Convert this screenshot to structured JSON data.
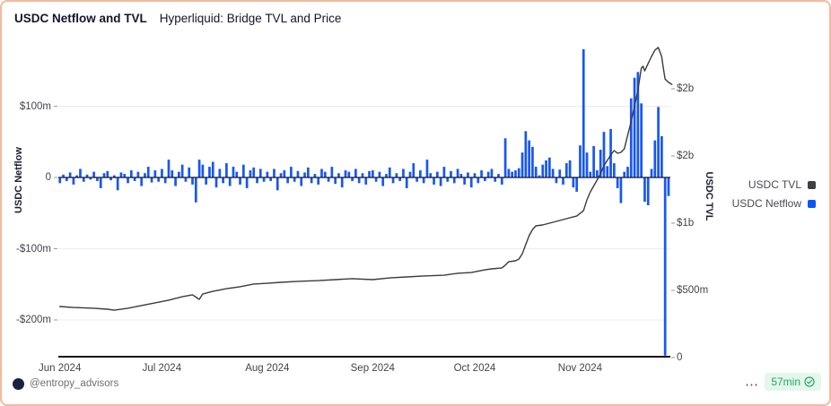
{
  "header": {
    "title": "USDC Netflow and TVL",
    "subtitle": "Hyperliquid: Bridge TVL and Price"
  },
  "legend": [
    {
      "label": "USDC TVL",
      "color": "#3f3f46"
    },
    {
      "label": "USDC Netflow",
      "color": "#0b57f5"
    }
  ],
  "footer": {
    "handle": "@entropy_advisors",
    "menu": "⋯",
    "badge": "57min"
  },
  "colors": {
    "bar_blue": "#1757f2",
    "line_dark": "#3b3b3b",
    "grid": "#ececec",
    "axis": "#15151c",
    "badge_green": "#27a567",
    "border_salmon": "#f4b9a2"
  },
  "chart_data": {
    "type": "bar",
    "subtype": "combo-bar-line-dual-axis",
    "title": "USDC Netflow and TVL",
    "subtitle": "Hyperliquid: Bridge TVL and Price",
    "x_axis": {
      "labels": [
        "Jun 2024",
        "Jul 2024",
        "Aug 2024",
        "Sep 2024",
        "Oct 2024",
        "Nov 2024"
      ],
      "label_day_offsets": [
        0,
        30,
        61,
        92,
        122,
        153
      ],
      "total_days": 180
    },
    "left_axis": {
      "title": "USDC Netflow",
      "unit": "$m",
      "ticks": [
        {
          "v": 100,
          "label": "$100m"
        },
        {
          "v": 0,
          "label": "0"
        },
        {
          "v": -100,
          "label": "-$100m"
        },
        {
          "v": -200,
          "label": "-$200m"
        }
      ],
      "range_m": [
        -253,
        190
      ]
    },
    "right_axis": {
      "title": "USDC TVL",
      "unit": "$m",
      "ticks": [
        {
          "v": 2000,
          "label": "$2b"
        },
        {
          "v": 1500,
          "label": "$2b"
        },
        {
          "v": 1000,
          "label": "$1b"
        },
        {
          "v": 500,
          "label": "$500m"
        },
        {
          "v": 0,
          "label": "0"
        }
      ],
      "range_m": [
        0,
        2350
      ]
    },
    "grid": "horizontal-at-left-ticks",
    "legend_position": "right",
    "series": [
      {
        "name": "USDC Netflow",
        "type": "bar",
        "axis": "left",
        "color": "#1757f2",
        "values": [
          -8,
          4,
          -5,
          7,
          -10,
          3,
          12,
          -6,
          4,
          -3,
          8,
          -5,
          -15,
          6,
          9,
          -4,
          3,
          -18,
          7,
          5,
          -8,
          10,
          -5,
          8,
          -12,
          6,
          15,
          -7,
          10,
          -6,
          12,
          -8,
          25,
          10,
          -12,
          8,
          18,
          -6,
          14,
          -10,
          -35,
          25,
          18,
          -10,
          15,
          22,
          -14,
          12,
          -8,
          20,
          -12,
          15,
          8,
          -10,
          18,
          -15,
          10,
          14,
          -8,
          12,
          -6,
          8,
          -5,
          12,
          -18,
          6,
          10,
          -8,
          15,
          -6,
          9,
          -12,
          7,
          14,
          -8,
          5,
          -10,
          12,
          8,
          -6,
          15,
          -9,
          6,
          -14,
          10,
          8,
          -5,
          12,
          -8,
          6,
          -10,
          9,
          10,
          -6,
          8,
          -12,
          5,
          14,
          -8,
          6,
          -5,
          12,
          -15,
          8,
          20,
          -6,
          10,
          -8,
          25,
          6,
          -10,
          8,
          -12,
          15,
          -6,
          9,
          -8,
          12,
          5,
          -10,
          7,
          -14,
          6,
          -8,
          10,
          -5,
          8,
          12,
          -6,
          5,
          -10,
          55,
          12,
          8,
          10,
          13,
          35,
          65,
          52,
          43,
          15,
          3,
          18,
          24,
          28,
          12,
          -8,
          11,
          -10,
          20,
          24,
          -14,
          -20,
          45,
          180,
          35,
          8,
          44,
          10,
          39,
          64,
          16,
          68,
          20,
          -15,
          -36,
          8,
          15,
          111,
          140,
          148,
          104,
          -34,
          -39,
          12,
          52,
          99,
          58,
          -250,
          -26
        ]
      },
      {
        "name": "USDC TVL",
        "type": "line",
        "axis": "right",
        "color": "#3b3b3b",
        "points": [
          [
            0,
            380
          ],
          [
            4,
            373
          ],
          [
            10,
            367
          ],
          [
            14,
            360
          ],
          [
            16,
            353
          ],
          [
            20,
            367
          ],
          [
            24,
            387
          ],
          [
            28,
            407
          ],
          [
            32,
            427
          ],
          [
            36,
            453
          ],
          [
            39,
            467
          ],
          [
            40,
            450
          ],
          [
            41,
            433
          ],
          [
            42,
            473
          ],
          [
            45,
            493
          ],
          [
            49,
            513
          ],
          [
            53,
            527
          ],
          [
            57,
            547
          ],
          [
            61,
            553
          ],
          [
            65,
            560
          ],
          [
            70,
            567
          ],
          [
            76,
            573
          ],
          [
            81,
            580
          ],
          [
            86,
            587
          ],
          [
            92,
            580
          ],
          [
            97,
            593
          ],
          [
            102,
            600
          ],
          [
            107,
            607
          ],
          [
            113,
            613
          ],
          [
            117,
            627
          ],
          [
            121,
            633
          ],
          [
            125,
            653
          ],
          [
            127,
            660
          ],
          [
            130,
            667
          ],
          [
            131,
            687
          ],
          [
            132,
            713
          ],
          [
            134,
            720
          ],
          [
            135,
            733
          ],
          [
            136,
            773
          ],
          [
            137,
            840
          ],
          [
            138,
            907
          ],
          [
            139,
            953
          ],
          [
            140,
            980
          ],
          [
            142,
            987
          ],
          [
            144,
            1000
          ],
          [
            147,
            1020
          ],
          [
            150,
            1040
          ],
          [
            152,
            1053
          ],
          [
            154,
            1093
          ],
          [
            155,
            1173
          ],
          [
            156,
            1233
          ],
          [
            158,
            1320
          ],
          [
            159,
            1367
          ],
          [
            160,
            1427
          ],
          [
            162,
            1507
          ],
          [
            163,
            1540
          ],
          [
            164,
            1520
          ],
          [
            165,
            1527
          ],
          [
            166,
            1553
          ],
          [
            167,
            1653
          ],
          [
            168,
            1753
          ],
          [
            169,
            1867
          ],
          [
            170,
            1987
          ],
          [
            171,
            2153
          ],
          [
            171.5,
            2167
          ],
          [
            172,
            2133
          ],
          [
            173,
            2187
          ],
          [
            174,
            2240
          ],
          [
            175,
            2287
          ],
          [
            176,
            2307
          ],
          [
            177,
            2240
          ],
          [
            177.5,
            2153
          ],
          [
            178,
            2073
          ],
          [
            179,
            2047
          ],
          [
            180,
            2033
          ]
        ]
      }
    ]
  }
}
